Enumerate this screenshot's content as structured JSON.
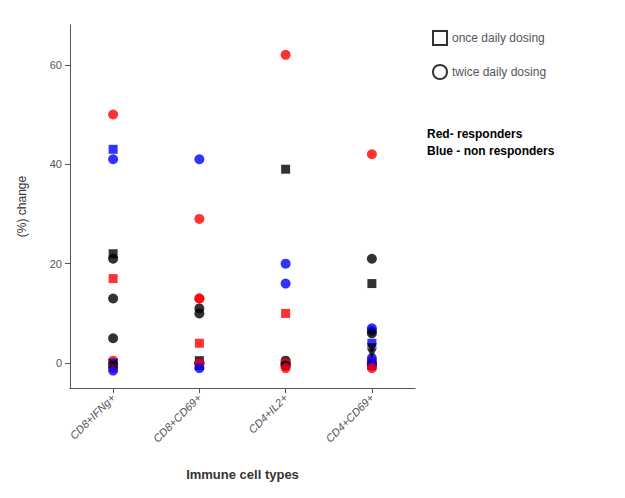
{
  "chart_data": {
    "type": "scatter",
    "xlabel": "Immune cell types",
    "ylabel": "(%) change",
    "categories": [
      "CD8+IFNg+",
      "CD8+CD69+",
      "CD4+IL2+",
      "CD4+CD69+"
    ],
    "ylim": [
      -5,
      68
    ],
    "yticks": [
      0,
      20,
      40,
      60
    ],
    "grid": false,
    "legend": "right",
    "annotation": "Red- responders\nBlue - non responders",
    "series": [
      {
        "name": "once daily dosing",
        "marker": "square",
        "x": [
          "CD8+IFNg+",
          "CD8+IFNg+",
          "CD8+IFNg+",
          "CD8+CD69+",
          "CD8+CD69+",
          "CD8+CD69+",
          "CD4+IL2+",
          "CD4+IL2+",
          "CD4+CD69+",
          "CD4+CD69+",
          "CD4+CD69+"
        ],
        "values": [
          43,
          22,
          17,
          4,
          0.5,
          -0.5,
          39,
          10,
          16,
          4,
          -0.5
        ],
        "colors": [
          "blue",
          "black",
          "red",
          "red",
          "black",
          "black",
          "black",
          "red",
          "black",
          "blue",
          "black"
        ]
      },
      {
        "name": "twice daily dosing",
        "marker": "circle",
        "x": [
          "CD8+IFNg+",
          "CD8+IFNg+",
          "CD8+IFNg+",
          "CD8+IFNg+",
          "CD8+IFNg+",
          "CD8+IFNg+",
          "CD8+IFNg+",
          "CD8+IFNg+",
          "CD8+IFNg+",
          "CD8+IFNg+",
          "CD8+CD69+",
          "CD8+CD69+",
          "CD8+CD69+",
          "CD8+CD69+",
          "CD8+CD69+",
          "CD8+CD69+",
          "CD8+CD69+",
          "CD8+CD69+",
          "CD8+CD69+",
          "CD8+CD69+",
          "CD4+IL2+",
          "CD4+IL2+",
          "CD4+IL2+",
          "CD4+IL2+",
          "CD4+IL2+",
          "CD4+IL2+",
          "CD4+IL2+",
          "CD4+IL2+",
          "CD4+IL2+",
          "CD4+IL2+",
          "CD4+CD69+",
          "CD4+CD69+",
          "CD4+CD69+",
          "CD4+CD69+",
          "CD4+CD69+",
          "CD4+CD69+",
          "CD4+CD69+",
          "CD4+CD69+",
          "CD4+CD69+",
          "CD4+CD69+",
          "CD4+CD69+"
        ],
        "values": [
          50,
          41,
          21,
          13,
          5,
          0.5,
          0,
          -0.5,
          -1,
          -1.5,
          41,
          29,
          13,
          13,
          11,
          10,
          0,
          0,
          0,
          -1,
          62,
          20,
          16,
          0.5,
          0,
          0,
          0,
          -0.5,
          -0.5,
          -1,
          42,
          21,
          7,
          6.5,
          6,
          0.5,
          0,
          0,
          -0.5,
          1,
          -1
        ],
        "colors": [
          "red",
          "blue",
          "black",
          "black",
          "black",
          "red",
          "blue",
          "black",
          "red",
          "blue",
          "blue",
          "red",
          "red",
          "red",
          "black",
          "black",
          "black",
          "blue",
          "red",
          "blue",
          "red",
          "blue",
          "blue",
          "black",
          "black",
          "red",
          "red",
          "blue",
          "black",
          "red",
          "red",
          "black",
          "blue",
          "blue",
          "black",
          "red",
          "red",
          "black",
          "blue",
          "blue",
          "red"
        ]
      },
      {
        "marker": "x",
        "x": [
          "CD8+IFNg+"
        ],
        "values": [
          0
        ],
        "colors": [
          "black"
        ]
      },
      {
        "marker": "triangle_down",
        "x": [
          "CD4+CD69+",
          "CD4+CD69+"
        ],
        "values": [
          3,
          2
        ],
        "colors": [
          "black",
          "black"
        ]
      }
    ]
  }
}
